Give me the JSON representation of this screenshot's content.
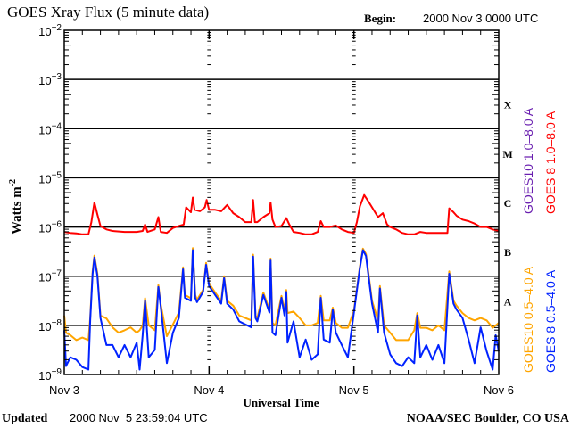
{
  "chart_data": {
    "type": "line",
    "title": "GOES Xray Flux (5 minute data)",
    "begin_label": "Begin:",
    "begin_value": "2000 Nov 3 0000 UTC",
    "xlabel": "Universal Time",
    "ylabel": "Watts m",
    "ylabel_exp": "-2",
    "yscale": "log",
    "ylim_log10": [
      -9,
      -2
    ],
    "xlim_hours": [
      0,
      72
    ],
    "x_ticks": [
      {
        "hour": 0,
        "label": "Nov 3"
      },
      {
        "hour": 24,
        "label": "Nov 4"
      },
      {
        "hour": 48,
        "label": "Nov 5"
      },
      {
        "hour": 72,
        "label": "Nov 6"
      }
    ],
    "y_ticks": [
      {
        "log": -2,
        "base": "10",
        "exp": "-2"
      },
      {
        "log": -3,
        "base": "10",
        "exp": "-3"
      },
      {
        "log": -4,
        "base": "10",
        "exp": "-4"
      },
      {
        "log": -5,
        "base": "10",
        "exp": "-5"
      },
      {
        "log": -6,
        "base": "10",
        "exp": "-6"
      },
      {
        "log": -7,
        "base": "10",
        "exp": "-7"
      },
      {
        "log": -8,
        "base": "10",
        "exp": "-8"
      },
      {
        "log": -9,
        "base": "10",
        "exp": "-9"
      }
    ],
    "flare_classes": [
      {
        "label": "X",
        "log": -3.5
      },
      {
        "label": "M",
        "log": -4.5
      },
      {
        "label": "C",
        "log": -5.5
      },
      {
        "label": "B",
        "log": -6.5
      },
      {
        "label": "A",
        "log": -7.5
      }
    ],
    "legend": [
      {
        "label": "GOES10 1.0–8.0 A",
        "color": "#6a1fb0"
      },
      {
        "label": "GOES 8 1.0–8.0 A",
        "color": "#ff0000"
      },
      {
        "label": "GOES10 0.5–4.0 A",
        "color": "#ffa500"
      },
      {
        "label": "GOES 8 0.5–4.0 A",
        "color": "#0022ff"
      }
    ],
    "series": [
      {
        "name": "GOES10 0.5-4.0 A",
        "color": "#ffa500",
        "points_hour_log10flux": [
          [
            0,
            -7.8
          ],
          [
            0.3,
            -8.15
          ],
          [
            1,
            -8.2
          ],
          [
            2,
            -8.3
          ],
          [
            3,
            -8.25
          ],
          [
            4,
            -8.3
          ],
          [
            4.3,
            -7.85
          ],
          [
            4.7,
            -6.9
          ],
          [
            5,
            -6.58
          ],
          [
            5.5,
            -6.95
          ],
          [
            6,
            -7.8
          ],
          [
            7,
            -7.86
          ],
          [
            8,
            -8.04
          ],
          [
            9,
            -8.15
          ],
          [
            10,
            -8.1
          ],
          [
            11,
            -8.04
          ],
          [
            12,
            -8.15
          ],
          [
            12.5,
            -8.1
          ],
          [
            13,
            -8.0
          ],
          [
            13.4,
            -7.45
          ],
          [
            14,
            -8.0
          ],
          [
            15,
            -8.1
          ],
          [
            15.6,
            -7.18
          ],
          [
            16,
            -7.58
          ],
          [
            17,
            -8.22
          ],
          [
            18,
            -7.98
          ],
          [
            19,
            -7.74
          ],
          [
            19.7,
            -6.82
          ],
          [
            20,
            -7.38
          ],
          [
            21,
            -7.45
          ],
          [
            21.3,
            -6.43
          ],
          [
            21.7,
            -7.38
          ],
          [
            22,
            -7.48
          ],
          [
            23,
            -7.28
          ],
          [
            23.5,
            -6.73
          ],
          [
            24,
            -7.15
          ],
          [
            25,
            -7.33
          ],
          [
            26,
            -7.5
          ],
          [
            26.5,
            -7.0
          ],
          [
            27,
            -7.5
          ],
          [
            28,
            -7.6
          ],
          [
            29,
            -7.8
          ],
          [
            30,
            -7.85
          ],
          [
            31,
            -7.9
          ],
          [
            31.3,
            -6.56
          ],
          [
            31.7,
            -7.8
          ],
          [
            32,
            -7.85
          ],
          [
            33,
            -7.33
          ],
          [
            34,
            -7.68
          ],
          [
            34.2,
            -6.64
          ],
          [
            34.5,
            -7.95
          ],
          [
            35,
            -8.0
          ],
          [
            36,
            -7.4
          ],
          [
            36.5,
            -7.7
          ],
          [
            36.8,
            -7.28
          ],
          [
            37,
            -7.75
          ],
          [
            38,
            -7.72
          ],
          [
            39,
            -7.85
          ],
          [
            40,
            -8.0
          ],
          [
            41,
            -8.0
          ],
          [
            42,
            -7.95
          ],
          [
            42.5,
            -7.4
          ],
          [
            43,
            -7.9
          ],
          [
            44,
            -7.9
          ],
          [
            44.5,
            -7.64
          ],
          [
            45,
            -7.95
          ],
          [
            46,
            -8.05
          ],
          [
            47,
            -8.05
          ],
          [
            48,
            -7.7
          ],
          [
            49,
            -6.8
          ],
          [
            49.5,
            -6.44
          ],
          [
            50,
            -6.55
          ],
          [
            51,
            -7.5
          ],
          [
            52,
            -7.9
          ],
          [
            52.3,
            -7.2
          ],
          [
            53,
            -8.0
          ],
          [
            54,
            -8.15
          ],
          [
            55,
            -8.3
          ],
          [
            56,
            -8.3
          ],
          [
            57,
            -8.3
          ],
          [
            58,
            -8.1
          ],
          [
            58.5,
            -7.75
          ],
          [
            59,
            -8.05
          ],
          [
            60,
            -8.05
          ],
          [
            61,
            -8.1
          ],
          [
            62,
            -8.0
          ],
          [
            63,
            -8.1
          ],
          [
            63.8,
            -6.9
          ],
          [
            64.5,
            -7.5
          ],
          [
            65,
            -7.6
          ],
          [
            66,
            -7.75
          ],
          [
            67,
            -7.85
          ],
          [
            68,
            -7.9
          ],
          [
            69,
            -7.85
          ],
          [
            70,
            -7.9
          ],
          [
            71,
            -8.05
          ],
          [
            71.5,
            -8.0
          ],
          [
            72,
            -7.95
          ]
        ]
      },
      {
        "name": "GOES 8 0.5-4.0 A",
        "color": "#0022ff",
        "points_hour_log10flux": [
          [
            0,
            -8.1
          ],
          [
            0.3,
            -8.83
          ],
          [
            1,
            -8.65
          ],
          [
            2,
            -8.7
          ],
          [
            3,
            -8.85
          ],
          [
            4,
            -8.9
          ],
          [
            4.3,
            -7.9
          ],
          [
            4.7,
            -6.95
          ],
          [
            5,
            -6.62
          ],
          [
            5.5,
            -7.0
          ],
          [
            6,
            -7.85
          ],
          [
            7,
            -8.4
          ],
          [
            8,
            -8.4
          ],
          [
            9,
            -8.65
          ],
          [
            10,
            -8.4
          ],
          [
            11,
            -8.65
          ],
          [
            12,
            -8.35
          ],
          [
            12.5,
            -8.9
          ],
          [
            13,
            -8.2
          ],
          [
            13.4,
            -7.5
          ],
          [
            14,
            -8.65
          ],
          [
            15,
            -8.5
          ],
          [
            15.6,
            -7.22
          ],
          [
            16,
            -7.62
          ],
          [
            17,
            -8.77
          ],
          [
            18,
            -8.15
          ],
          [
            19,
            -7.85
          ],
          [
            19.7,
            -6.86
          ],
          [
            20,
            -7.44
          ],
          [
            21,
            -7.5
          ],
          [
            21.3,
            -6.47
          ],
          [
            21.7,
            -7.44
          ],
          [
            22,
            -7.53
          ],
          [
            23,
            -7.32
          ],
          [
            23.5,
            -6.77
          ],
          [
            24,
            -7.2
          ],
          [
            25,
            -7.38
          ],
          [
            26,
            -7.56
          ],
          [
            26.5,
            -7.04
          ],
          [
            27,
            -7.56
          ],
          [
            28,
            -7.68
          ],
          [
            29,
            -7.92
          ],
          [
            30,
            -7.98
          ],
          [
            31,
            -8.04
          ],
          [
            31.3,
            -6.6
          ],
          [
            31.7,
            -7.85
          ],
          [
            32,
            -7.92
          ],
          [
            33,
            -7.38
          ],
          [
            34,
            -7.74
          ],
          [
            34.2,
            -6.68
          ],
          [
            34.5,
            -8.15
          ],
          [
            35,
            -8.2
          ],
          [
            36,
            -7.44
          ],
          [
            36.5,
            -7.8
          ],
          [
            36.8,
            -7.32
          ],
          [
            37,
            -8.35
          ],
          [
            38,
            -7.92
          ],
          [
            39,
            -8.65
          ],
          [
            40,
            -8.29
          ],
          [
            41,
            -8.7
          ],
          [
            42,
            -8.59
          ],
          [
            42.5,
            -7.44
          ],
          [
            43,
            -8.29
          ],
          [
            44,
            -8.35
          ],
          [
            44.5,
            -7.68
          ],
          [
            45,
            -8.15
          ],
          [
            46,
            -8.4
          ],
          [
            47,
            -8.65
          ],
          [
            48,
            -7.74
          ],
          [
            49,
            -6.83
          ],
          [
            49.5,
            -6.47
          ],
          [
            50,
            -6.59
          ],
          [
            51,
            -7.56
          ],
          [
            52,
            -8.15
          ],
          [
            52.3,
            -7.25
          ],
          [
            53,
            -8.15
          ],
          [
            54,
            -8.59
          ],
          [
            55,
            -8.77
          ],
          [
            56,
            -8.83
          ],
          [
            57,
            -8.65
          ],
          [
            58,
            -8.77
          ],
          [
            58.5,
            -7.8
          ],
          [
            59,
            -8.65
          ],
          [
            60,
            -8.4
          ],
          [
            61,
            -8.7
          ],
          [
            62,
            -8.4
          ],
          [
            63,
            -8.77
          ],
          [
            63.8,
            -6.95
          ],
          [
            64.5,
            -7.56
          ],
          [
            65,
            -7.68
          ],
          [
            66,
            -7.85
          ],
          [
            67,
            -8.29
          ],
          [
            68,
            -8.77
          ],
          [
            69,
            -8.04
          ],
          [
            70,
            -8.53
          ],
          [
            71,
            -8.9
          ],
          [
            71.5,
            -8.2
          ],
          [
            72,
            -8.53
          ]
        ]
      },
      {
        "name": "GOES 8 1.0-8.0 A",
        "color": "#ff0000",
        "points_hour_log10flux": [
          [
            0,
            -6.1
          ],
          [
            1,
            -6.12
          ],
          [
            2,
            -6.13
          ],
          [
            3,
            -6.15
          ],
          [
            4,
            -6.15
          ],
          [
            4.5,
            -5.9
          ],
          [
            5,
            -5.5
          ],
          [
            5.5,
            -5.75
          ],
          [
            6,
            -5.98
          ],
          [
            7,
            -6.05
          ],
          [
            8,
            -6.08
          ],
          [
            10,
            -6.1
          ],
          [
            12,
            -6.1
          ],
          [
            13,
            -6.08
          ],
          [
            13.4,
            -5.95
          ],
          [
            13.8,
            -6.1
          ],
          [
            15,
            -6.05
          ],
          [
            15.6,
            -5.8
          ],
          [
            16,
            -6.1
          ],
          [
            17,
            -6.12
          ],
          [
            18,
            -6.02
          ],
          [
            19,
            -5.98
          ],
          [
            19.8,
            -5.95
          ],
          [
            20.2,
            -5.6
          ],
          [
            21,
            -5.7
          ],
          [
            21.3,
            -5.4
          ],
          [
            21.6,
            -5.65
          ],
          [
            22.5,
            -5.68
          ],
          [
            23.3,
            -5.6
          ],
          [
            23.6,
            -5.45
          ],
          [
            24,
            -5.65
          ],
          [
            25,
            -5.65
          ],
          [
            26,
            -5.68
          ],
          [
            27,
            -5.55
          ],
          [
            28,
            -5.72
          ],
          [
            29,
            -5.8
          ],
          [
            30,
            -5.9
          ],
          [
            31,
            -5.9
          ],
          [
            31.3,
            -5.45
          ],
          [
            31.6,
            -5.9
          ],
          [
            32,
            -5.9
          ],
          [
            33,
            -5.8
          ],
          [
            34,
            -5.72
          ],
          [
            34.2,
            -5.5
          ],
          [
            34.5,
            -5.85
          ],
          [
            35,
            -6.0
          ],
          [
            36,
            -5.98
          ],
          [
            36.8,
            -5.82
          ],
          [
            37.3,
            -5.95
          ],
          [
            38,
            -6.1
          ],
          [
            39,
            -6.12
          ],
          [
            40,
            -6.15
          ],
          [
            41,
            -6.15
          ],
          [
            42,
            -6.1
          ],
          [
            42.5,
            -5.88
          ],
          [
            43,
            -6.0
          ],
          [
            44,
            -6.0
          ],
          [
            45,
            -5.97
          ],
          [
            46,
            -6.05
          ],
          [
            47,
            -6.1
          ],
          [
            48,
            -6.12
          ],
          [
            48.5,
            -5.9
          ],
          [
            49,
            -5.58
          ],
          [
            49.7,
            -5.35
          ],
          [
            50.5,
            -5.5
          ],
          [
            51,
            -5.6
          ],
          [
            52,
            -5.8
          ],
          [
            52.8,
            -5.72
          ],
          [
            53.5,
            -5.95
          ],
          [
            54,
            -6.0
          ],
          [
            55,
            -6.05
          ],
          [
            56,
            -6.12
          ],
          [
            57,
            -6.15
          ],
          [
            58,
            -6.15
          ],
          [
            59,
            -6.1
          ],
          [
            60,
            -6.12
          ],
          [
            62,
            -6.12
          ],
          [
            63.5,
            -6.12
          ],
          [
            63.8,
            -5.62
          ],
          [
            64.5,
            -5.7
          ],
          [
            65,
            -5.77
          ],
          [
            66,
            -5.85
          ],
          [
            67,
            -5.88
          ],
          [
            68,
            -5.93
          ],
          [
            69,
            -6.0
          ],
          [
            70,
            -6.0
          ],
          [
            71,
            -6.05
          ],
          [
            72,
            -6.08
          ]
        ]
      }
    ]
  },
  "footer": {
    "updated_label": "Updated",
    "updated_value": "2000 Nov  5 23:59:04 UTC",
    "credit": "NOAA/SEC Boulder, CO USA"
  }
}
